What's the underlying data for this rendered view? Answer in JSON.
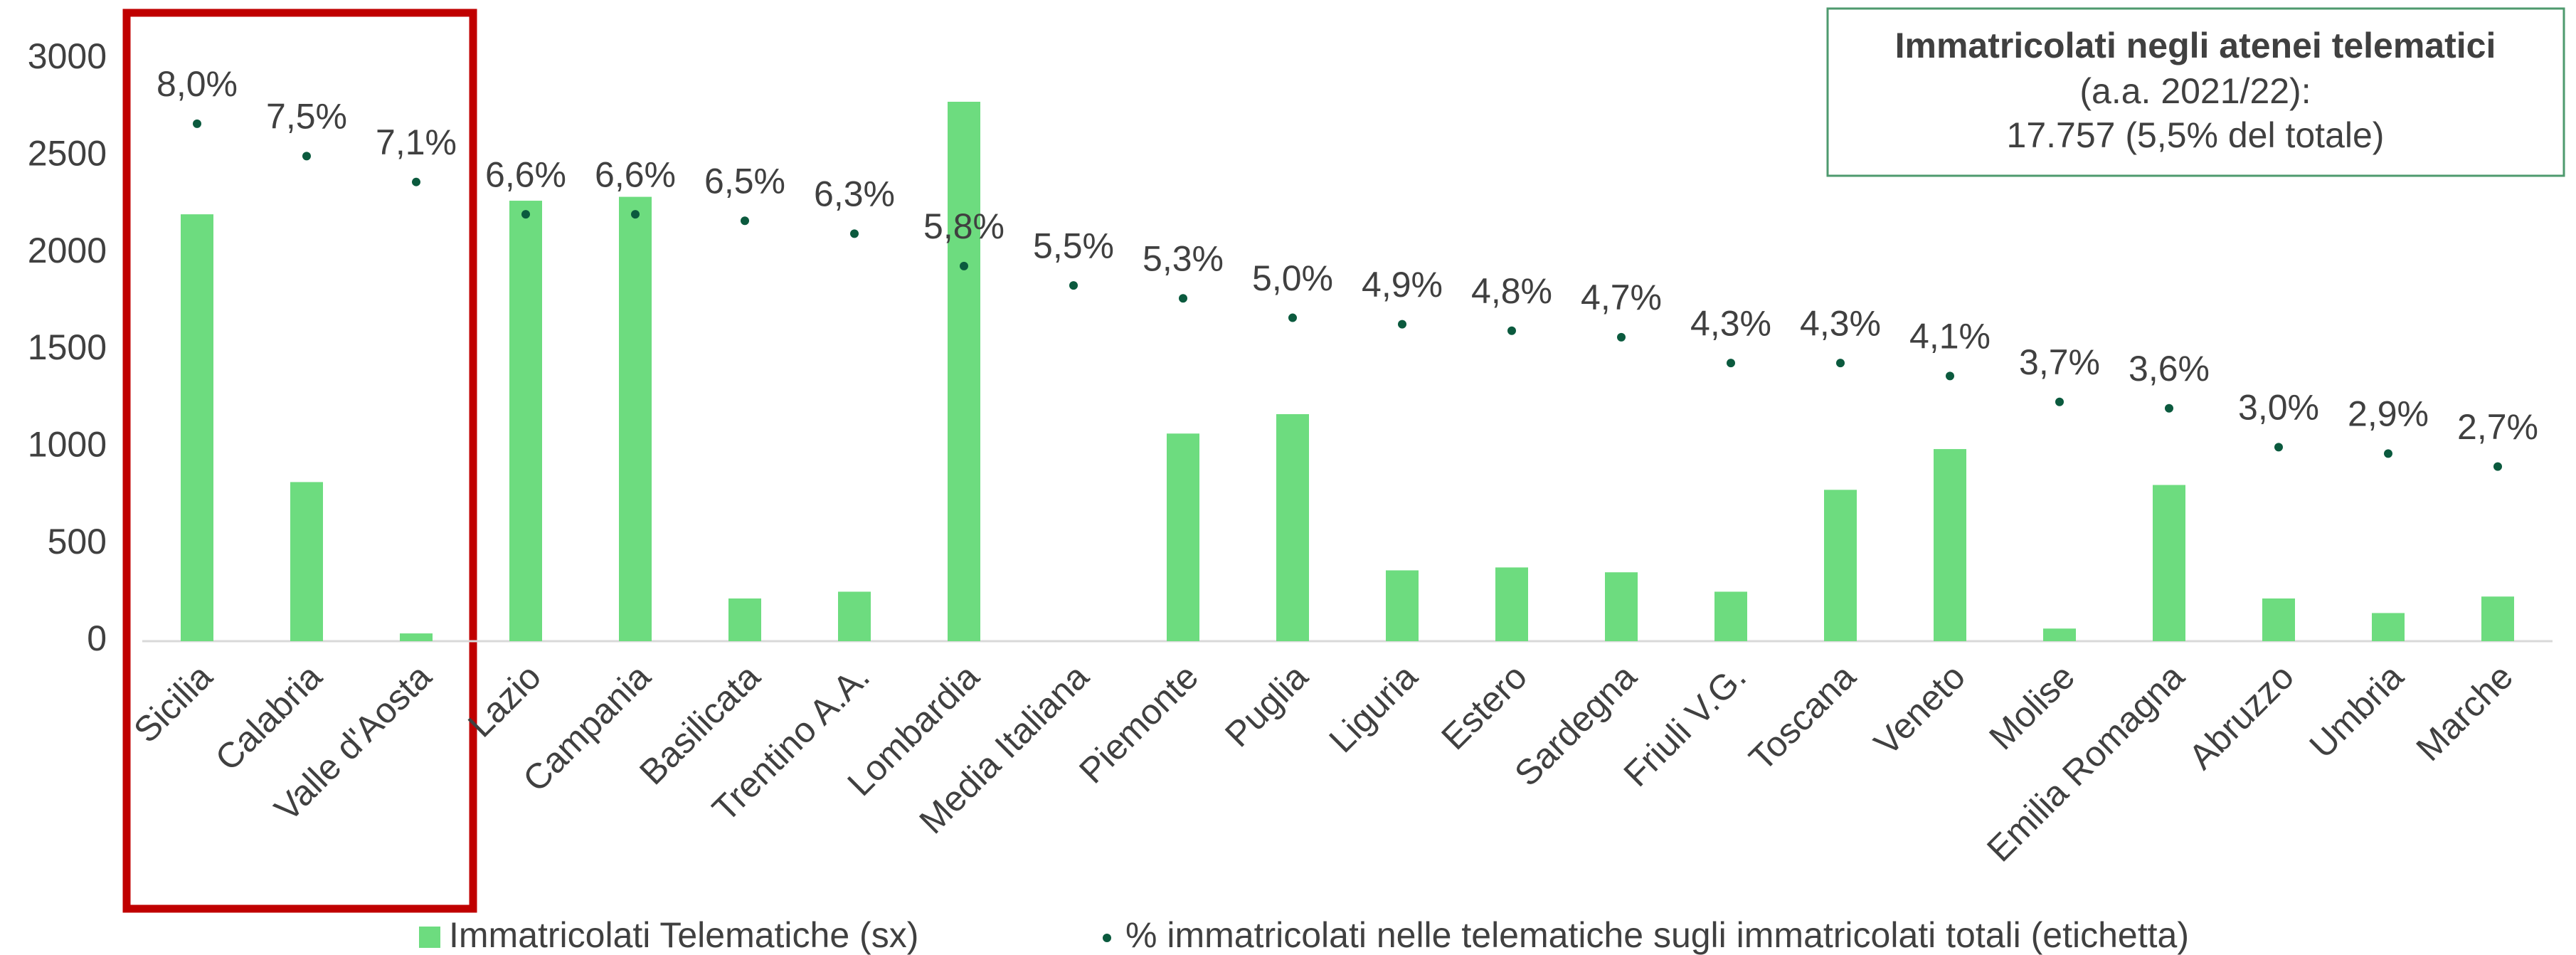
{
  "chart_data": {
    "type": "bar",
    "categories": [
      "Sicilia",
      "Calabria",
      "Valle d'Aosta",
      "Lazio",
      "Campania",
      "Basilicata",
      "Trentino A.A.",
      "Lombardia",
      "Media Italiana",
      "Piemonte",
      "Puglia",
      "Liguria",
      "Estero",
      "Sardegna",
      "Friuli V.G.",
      "Toscana",
      "Veneto",
      "Molise",
      "Emilia Romagna",
      "Abruzzo",
      "Umbria",
      "Marche"
    ],
    "series": [
      {
        "name": "Immatricolati Telematiche (sx)",
        "color": "#6ddc7f",
        "type": "bar",
        "values": [
          2200,
          820,
          40,
          2270,
          2290,
          220,
          255,
          2780,
          null,
          1070,
          1170,
          365,
          380,
          355,
          255,
          780,
          990,
          65,
          805,
          220,
          145,
          230
        ]
      },
      {
        "name": "% immatricolati nelle telematiche sugli immatricolati totali (etichetta)",
        "color": "#0b5a3e",
        "type": "scatter",
        "axis": "y2",
        "values": [
          8.0,
          7.5,
          7.1,
          6.6,
          6.6,
          6.5,
          6.3,
          5.8,
          5.5,
          5.3,
          5.0,
          4.9,
          4.8,
          4.7,
          4.3,
          4.3,
          4.1,
          3.7,
          3.6,
          3.0,
          2.9,
          2.7
        ],
        "value_labels": [
          "8,0%",
          "7,5%",
          "7,1%",
          "6,6%",
          "6,6%",
          "6,5%",
          "6,3%",
          "5,8%",
          "5,5%",
          "5,3%",
          "5,0%",
          "4,9%",
          "4,8%",
          "4,7%",
          "4,3%",
          "4,3%",
          "4,1%",
          "3,7%",
          "3,6%",
          "3,0%",
          "2,9%",
          "2,7%"
        ]
      }
    ],
    "ylim": [
      0,
      3000
    ],
    "yticks": [
      0,
      500,
      1000,
      1500,
      2000,
      2500,
      3000
    ],
    "y2lim": [
      0,
      9
    ],
    "info_box": {
      "title": "Immatricolati negli atenei telematici",
      "line1": "(a.a. 2021/22):",
      "line2": "17.757 (5,5% del totale)"
    }
  }
}
